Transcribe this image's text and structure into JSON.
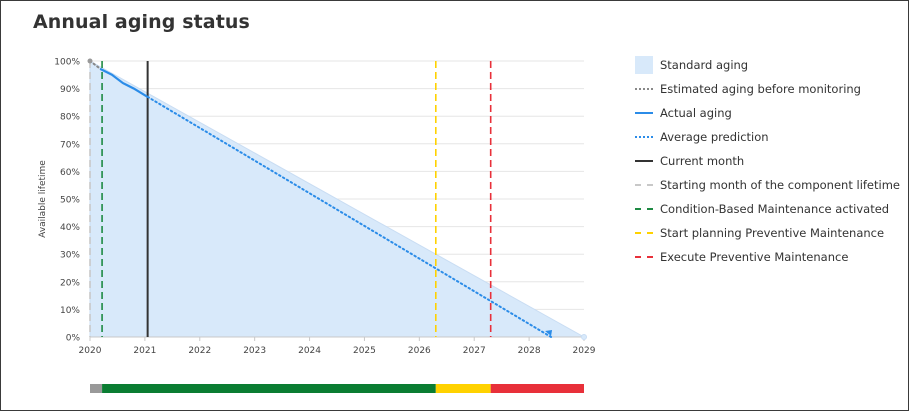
{
  "title": "Annual aging status",
  "chart_data": {
    "type": "line",
    "ylabel": "Available lifetime",
    "xlabel": "",
    "y_ticks": [
      "0%",
      "10%",
      "20%",
      "30%",
      "40%",
      "50%",
      "60%",
      "70%",
      "80%",
      "90%",
      "100%"
    ],
    "x_ticks": [
      "2020",
      "2021",
      "2022",
      "2023",
      "2024",
      "2025",
      "2026",
      "2027",
      "2028",
      "2029"
    ],
    "xlim": [
      2020.0,
      2029.0
    ],
    "ylim": [
      0,
      100
    ],
    "grid": true,
    "legend_position": "right",
    "series": [
      {
        "name": "Standard aging",
        "style": "area",
        "color": "#d8e9fa",
        "points": [
          [
            2020.0,
            100
          ],
          [
            2029.0,
            0
          ]
        ]
      },
      {
        "name": "Estimated aging before monitoring",
        "style": "dotted",
        "color": "#888888",
        "points": [
          [
            2020.0,
            100
          ],
          [
            2020.2,
            97
          ]
        ]
      },
      {
        "name": "Actual aging",
        "style": "solid",
        "color": "#2b8ce8",
        "points": [
          [
            2020.2,
            97
          ],
          [
            2020.4,
            95
          ],
          [
            2020.6,
            92
          ],
          [
            2020.8,
            90
          ],
          [
            2021.05,
            87
          ]
        ]
      },
      {
        "name": "Average prediction",
        "style": "dotted",
        "color": "#2b8ce8",
        "points": [
          [
            2021.05,
            87
          ],
          [
            2028.4,
            0
          ]
        ]
      }
    ],
    "markers": [
      {
        "name": "Current month",
        "x": 2021.05,
        "color": "#333333",
        "style": "solid"
      },
      {
        "name": "Starting month of the component lifetime",
        "x": 2020.0,
        "color": "#c8c8c8",
        "style": "dashed"
      },
      {
        "name": "Condition-Based Maintenance activated",
        "x": 2020.22,
        "color": "#1e8a43",
        "style": "dashed"
      },
      {
        "name": "Start planning Preventive Maintenance",
        "x": 2026.3,
        "color": "#ffd200",
        "style": "dashed"
      },
      {
        "name": "Execute Preventive Maintenance",
        "x": 2027.3,
        "color": "#e8303a",
        "style": "dashed"
      }
    ],
    "status_bar": [
      {
        "from": 2020.0,
        "to": 2020.22,
        "color": "#999999"
      },
      {
        "from": 2020.22,
        "to": 2026.3,
        "color": "#0a7d32"
      },
      {
        "from": 2026.3,
        "to": 2027.3,
        "color": "#ffd200"
      },
      {
        "from": 2027.3,
        "to": 2029.0,
        "color": "#e8303a"
      }
    ]
  },
  "legend": [
    {
      "label": "Standard aging",
      "kind": "box",
      "color": "#d8e9fa"
    },
    {
      "label": "Estimated aging before monitoring",
      "kind": "dotted",
      "color": "#888888"
    },
    {
      "label": "Actual aging",
      "kind": "solid",
      "color": "#2b8ce8"
    },
    {
      "label": "Average prediction",
      "kind": "dotted",
      "color": "#2b8ce8"
    },
    {
      "label": "Current month",
      "kind": "solid",
      "color": "#333333"
    },
    {
      "label": "Starting month of the component lifetime",
      "kind": "dashed",
      "color": "#c8c8c8"
    },
    {
      "label": "Condition-Based Maintenance activated",
      "kind": "dashed",
      "color": "#1e8a43"
    },
    {
      "label": "Start planning Preventive Maintenance",
      "kind": "dashed",
      "color": "#ffd200"
    },
    {
      "label": "Execute Preventive Maintenance",
      "kind": "dashed",
      "color": "#e8303a"
    }
  ]
}
